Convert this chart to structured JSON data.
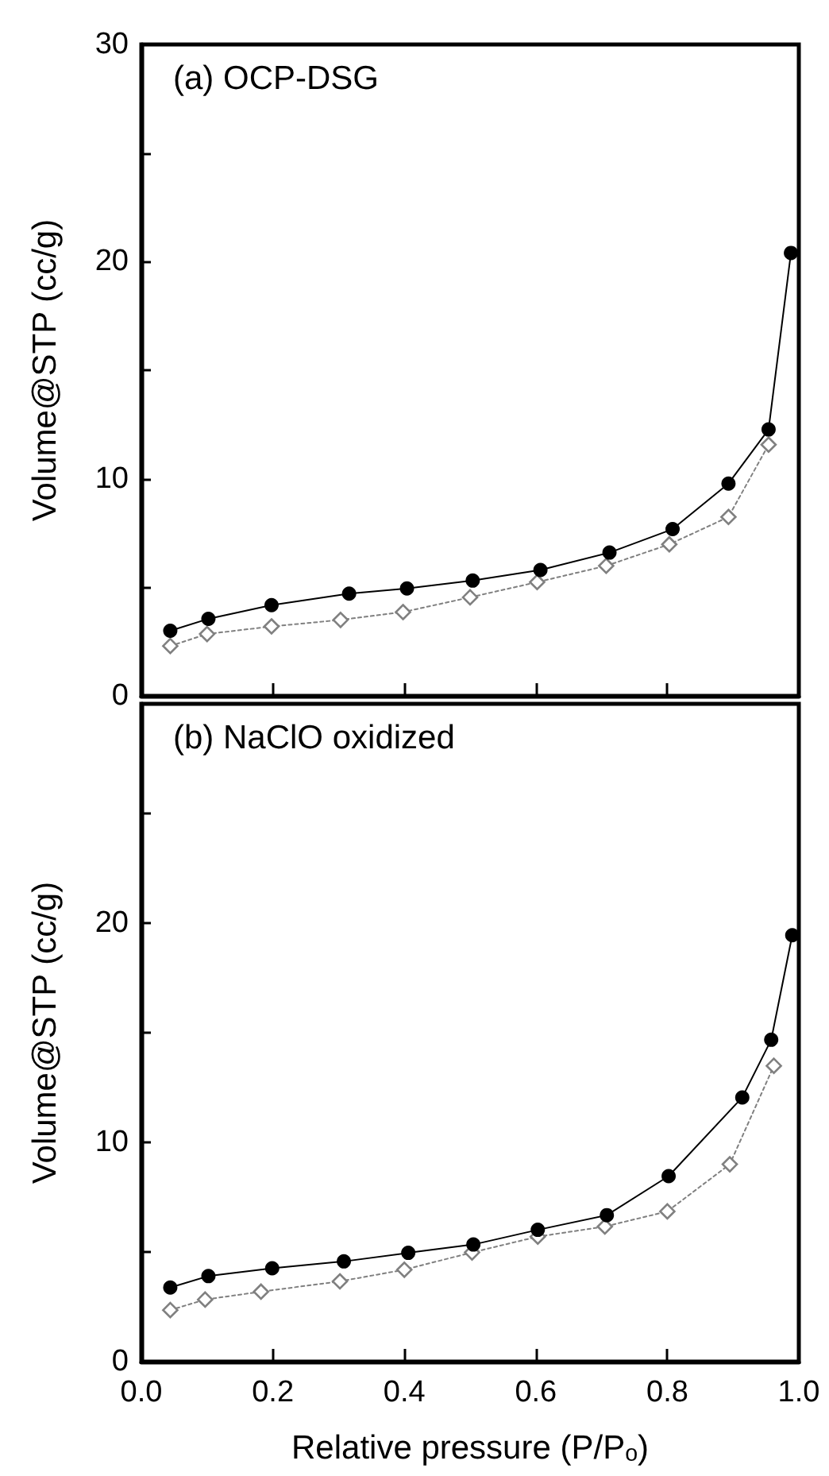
{
  "chart_data": [
    {
      "type": "line",
      "title": "(a) OCP-DSG",
      "ylabel": "Volume@STP (cc/g)",
      "xlim": [
        0,
        1
      ],
      "xticks": [
        0.2,
        0.4,
        0.6,
        0.8
      ],
      "ylim": [
        0,
        30
      ],
      "yticks": [
        0,
        {
          "value": 5,
          "label": null
        },
        10,
        {
          "value": 15,
          "label": null
        },
        20,
        {
          "value": 25,
          "label": null
        },
        30
      ],
      "tick_labels": "y",
      "grid": false,
      "series": [
        {
          "color": "#000000",
          "marker": "circle",
          "line_style": "solid",
          "x": [
            0.044,
            0.102,
            0.198,
            0.316,
            0.404,
            0.504,
            0.607,
            0.712,
            0.808,
            0.893,
            0.954,
            0.988
          ],
          "values": [
            3.0,
            3.55,
            4.18,
            4.71,
            4.95,
            5.31,
            5.8,
            6.6,
            7.68,
            9.78,
            12.27,
            20.4
          ]
        },
        {
          "color": "#808080",
          "marker": "diamond",
          "line_style": "dotted",
          "x": [
            0.044,
            0.1,
            0.198,
            0.303,
            0.398,
            0.5,
            0.602,
            0.707,
            0.803,
            0.893,
            0.954
          ],
          "values": [
            2.3,
            2.85,
            3.2,
            3.5,
            3.86,
            4.54,
            5.24,
            5.99,
            6.98,
            8.24,
            11.57
          ]
        }
      ]
    },
    {
      "type": "line",
      "title": "(b) NaClO oxidized",
      "xlabel": "Relative pressure (P/Pₒ)",
      "ylabel": "Volume@STP (cc/g)",
      "xlim": [
        0,
        1
      ],
      "xticks": [
        {
          "value": 0,
          "label": "0.0"
        },
        0.2,
        0.4,
        0.6,
        0.8,
        {
          "value": 1,
          "label": "1.0"
        }
      ],
      "ylim": [
        0,
        30
      ],
      "yticks": [
        0,
        {
          "value": 5,
          "label": null
        },
        10,
        {
          "value": 15,
          "label": null
        },
        20,
        {
          "value": 25,
          "label": null
        }
      ],
      "grid": false,
      "series": [
        {
          "color": "#000000",
          "marker": "circle",
          "line_style": "solid",
          "x": [
            0.044,
            0.102,
            0.199,
            0.308,
            0.406,
            0.505,
            0.603,
            0.708,
            0.802,
            0.914,
            0.958,
            0.99
          ],
          "values": [
            3.38,
            3.9,
            4.26,
            4.57,
            4.96,
            5.34,
            6.01,
            6.68,
            8.46,
            12.05,
            14.68,
            19.45
          ]
        },
        {
          "color": "#808080",
          "marker": "diamond",
          "line_style": "dotted",
          "x": [
            0.044,
            0.097,
            0.182,
            0.302,
            0.4,
            0.503,
            0.603,
            0.705,
            0.8,
            0.895,
            0.962
          ],
          "values": [
            2.35,
            2.83,
            3.19,
            3.66,
            4.19,
            4.98,
            5.7,
            6.16,
            6.85,
            9.0,
            13.49
          ]
        }
      ]
    }
  ]
}
